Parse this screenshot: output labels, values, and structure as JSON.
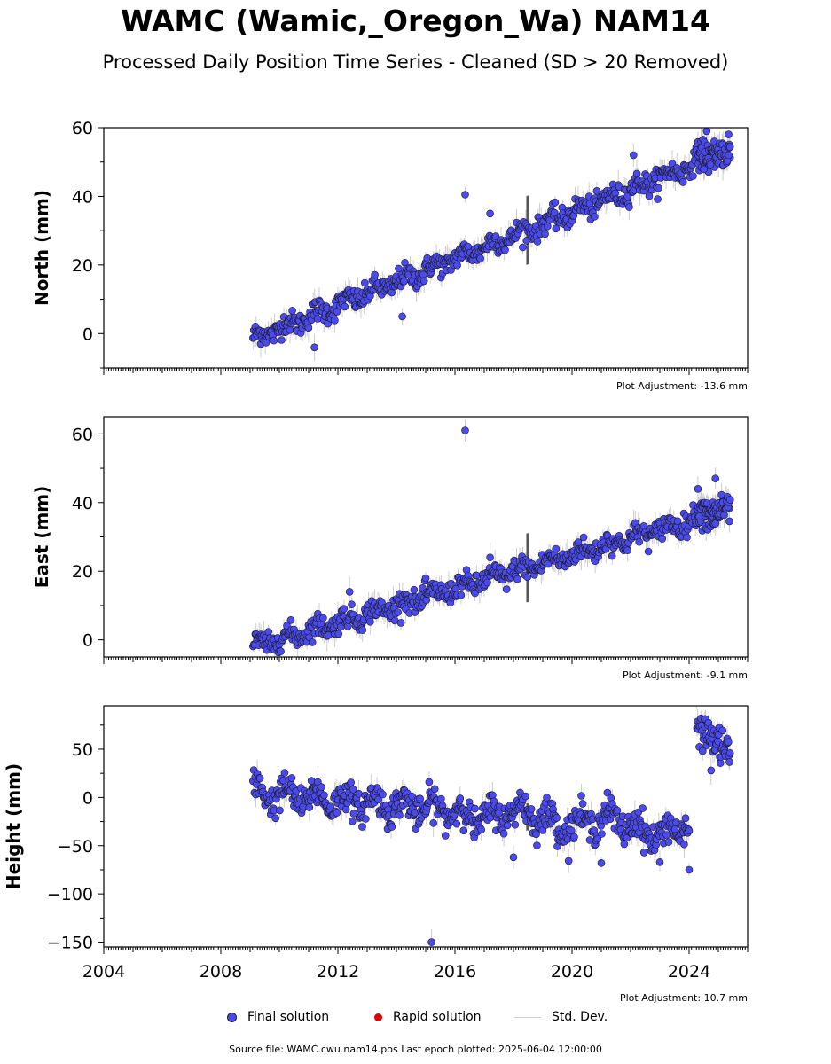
{
  "header": {
    "title": "WAMC (Wamic,_Oregon_Wa) NAM14",
    "subtitle": "Processed Daily Position Time Series - Cleaned (SD > 20 Removed)"
  },
  "legend": {
    "final": "Final solution",
    "rapid": "Rapid solution",
    "std": "Std. Dev."
  },
  "footer": "Source file: WAMC.cwu.nam14.pos  Last epoch plotted: 2025-06-04 12:00:00",
  "colors": {
    "final": "#4a4af0",
    "rapid": "#e00000",
    "std": "#cccccc"
  },
  "chart_data": [
    {
      "type": "scatter",
      "component": "north",
      "ylabel": "North (mm)",
      "adjustment": "Plot Adjustment: -13.6 mm",
      "xlim": [
        2004,
        2026
      ],
      "ylim": [
        -10,
        60
      ],
      "yticks": [
        0,
        20,
        40,
        60
      ],
      "trend": [
        [
          2009.1,
          -1.5
        ],
        [
          2025.4,
          53.5
        ]
      ],
      "outliers": [
        [
          2016.35,
          40.5
        ],
        [
          2017.2,
          35
        ],
        [
          2011.2,
          -4
        ],
        [
          2014.2,
          5
        ],
        [
          2024.6,
          59
        ],
        [
          2022.1,
          52
        ]
      ]
    },
    {
      "type": "scatter",
      "component": "east",
      "ylabel": "East (mm)",
      "adjustment": "Plot Adjustment: -9.1 mm",
      "xlim": [
        2004,
        2026
      ],
      "ylim": [
        -5,
        65
      ],
      "yticks": [
        0,
        20,
        40,
        60
      ],
      "trend": [
        [
          2009.1,
          -2
        ],
        [
          2025.4,
          38
        ]
      ],
      "outliers": [
        [
          2016.35,
          61
        ],
        [
          2017.2,
          24
        ],
        [
          2012.4,
          14
        ],
        [
          2024.3,
          44
        ],
        [
          2024.9,
          47
        ],
        [
          2015.0,
          18
        ]
      ]
    },
    {
      "type": "scatter",
      "component": "height",
      "ylabel": "Height (mm)",
      "adjustment": "Plot Adjustment: 10.7 mm",
      "xlim": [
        2004,
        2026
      ],
      "ylim": [
        -155,
        95
      ],
      "yticks": [
        -150,
        -100,
        -50,
        0,
        50
      ],
      "trend": [
        [
          2009.1,
          5
        ],
        [
          2024.0,
          -35
        ]
      ],
      "jump": [
        [
          2024.25,
          75
        ],
        [
          2025.4,
          45
        ]
      ],
      "outliers": [
        [
          2015.2,
          -150
        ],
        [
          2018.0,
          -62
        ],
        [
          2024.0,
          -75
        ],
        [
          2021.0,
          -68
        ],
        [
          2023.0,
          -67
        ],
        [
          2024.75,
          28
        ]
      ]
    }
  ],
  "xticks": [
    2004,
    2008,
    2012,
    2016,
    2020,
    2024
  ]
}
